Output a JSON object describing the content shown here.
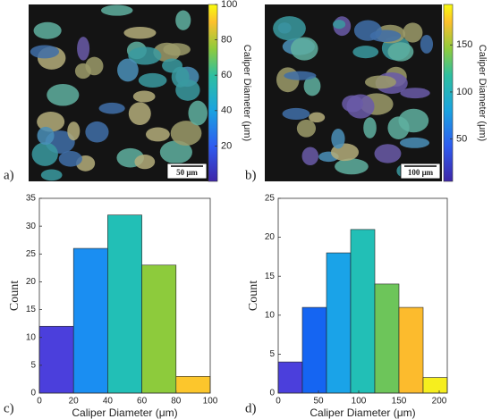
{
  "chart_data": [
    {
      "type": "colorbar",
      "panel": "a)",
      "scale_bar": "50 μm",
      "label": "Caliper Diameter (μm)",
      "ylim": [
        0,
        100
      ],
      "yticks": [
        20,
        40,
        60,
        80,
        100
      ]
    },
    {
      "type": "colorbar",
      "panel": "b)",
      "scale_bar": "100 μm",
      "label": "Caliper Diameter (μm)",
      "ylim": [
        5,
        193
      ],
      "yticks": [
        50,
        100,
        150
      ]
    },
    {
      "type": "histogram",
      "panel": "c)",
      "xlabel": "Caliper Diameter (μm)",
      "ylabel": "Count",
      "bins": [
        0,
        20,
        40,
        60,
        80,
        100
      ],
      "counts": [
        12,
        26,
        32,
        23,
        3
      ],
      "colors": [
        "#4b3fdc",
        "#1a8ef2",
        "#22bfb6",
        "#8dcb3c",
        "#fcc62c"
      ],
      "xlim": [
        0,
        100
      ],
      "xticks": [
        0,
        20,
        40,
        60,
        80,
        100
      ],
      "ylim": [
        0,
        35
      ],
      "yticks": [
        0,
        5,
        10,
        15,
        20,
        25,
        30,
        35
      ]
    },
    {
      "type": "histogram",
      "panel": "d)",
      "xlabel": "Caliper Diameter (μm)",
      "ylabel": "Count",
      "bins": [
        0,
        30,
        60,
        90,
        120,
        150,
        180,
        210
      ],
      "counts": [
        4,
        11,
        18,
        21,
        14,
        11,
        2
      ],
      "colors": [
        "#4b3fdc",
        "#1565f2",
        "#1aa3e8",
        "#22bfb6",
        "#6dc55a",
        "#fcbb2d",
        "#f6ee1e"
      ],
      "xlim": [
        0,
        210
      ],
      "xticks": [
        0,
        50,
        100,
        150,
        200
      ],
      "ylim": [
        0,
        25
      ],
      "yticks": [
        0,
        5,
        10,
        15,
        20,
        25
      ]
    }
  ]
}
